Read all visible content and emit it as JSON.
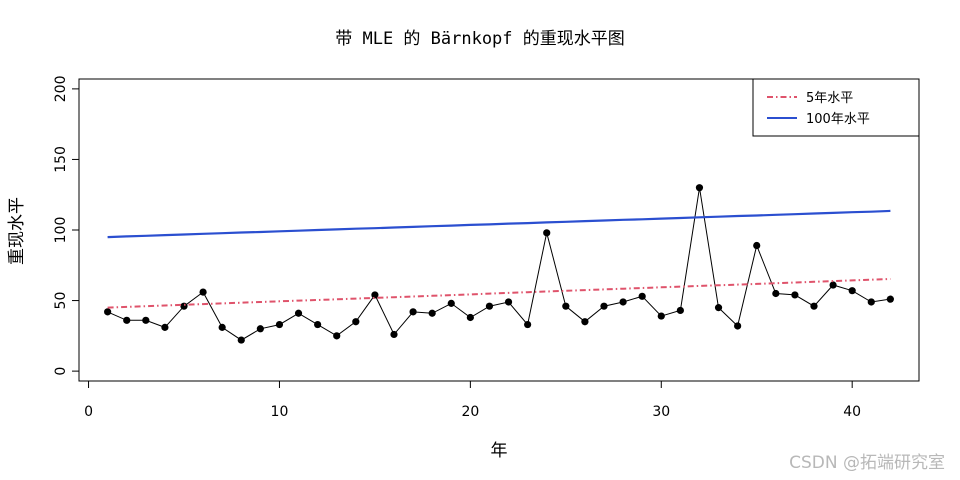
{
  "chart_data": {
    "type": "line",
    "title": "带 MLE 的 Bärnkopf 的重现水平图",
    "xlabel": "年",
    "ylabel": "重现水平",
    "xlim": [
      -0.5,
      43.5
    ],
    "ylim": [
      -7,
      207
    ],
    "xticks": [
      0,
      10,
      20,
      30,
      40
    ],
    "yticks": [
      0,
      50,
      100,
      150,
      200
    ],
    "x": [
      1,
      2,
      3,
      4,
      5,
      6,
      7,
      8,
      9,
      10,
      11,
      12,
      13,
      14,
      15,
      16,
      17,
      18,
      19,
      20,
      21,
      22,
      23,
      24,
      25,
      26,
      27,
      28,
      29,
      30,
      31,
      32,
      33,
      34,
      35,
      36,
      37,
      38,
      39,
      40,
      41,
      42
    ],
    "series": [
      {
        "name": "",
        "style": "points-solid",
        "color": "#000000",
        "values": [
          42,
          36,
          36,
          31,
          46,
          56,
          31,
          22,
          30,
          33,
          41,
          33,
          25,
          35,
          54,
          26,
          42,
          41,
          48,
          38,
          46,
          49,
          33,
          98,
          46,
          35,
          46,
          49,
          53,
          39,
          43,
          130,
          45,
          32,
          89,
          55,
          54,
          46,
          61,
          57,
          49,
          51
        ]
      },
      {
        "name": "5年水平",
        "style": "dashdot",
        "color": "#df536b",
        "values": [
          45.0,
          45.5,
          46.0,
          46.5,
          47.0,
          47.5,
          48.0,
          48.5,
          49.0,
          49.5,
          50.0,
          50.4,
          50.9,
          51.4,
          51.9,
          52.4,
          52.9,
          53.4,
          53.9,
          54.4,
          54.9,
          55.4,
          55.9,
          56.4,
          56.9,
          57.4,
          57.9,
          58.4,
          58.9,
          59.4,
          59.9,
          60.4,
          60.8,
          61.3,
          61.8,
          62.3,
          62.8,
          63.3,
          63.8,
          64.3,
          64.8,
          65.3
        ]
      },
      {
        "name": "100年水平",
        "style": "solid",
        "color": "#2b4fd0",
        "values": [
          95.0,
          95.5,
          95.9,
          96.4,
          96.8,
          97.3,
          97.7,
          98.2,
          98.6,
          99.1,
          99.5,
          100.0,
          100.4,
          100.9,
          101.3,
          101.8,
          102.2,
          102.7,
          103.1,
          103.6,
          104.0,
          104.5,
          104.9,
          105.4,
          105.8,
          106.3,
          106.7,
          107.2,
          107.6,
          108.1,
          108.5,
          109.0,
          109.4,
          109.9,
          110.3,
          110.8,
          111.2,
          111.7,
          112.1,
          112.6,
          113.0,
          113.5
        ]
      }
    ],
    "legend": {
      "position": "top-right",
      "items": [
        {
          "label": "5年水平",
          "color": "#df536b",
          "style": "dashdot"
        },
        {
          "label": "100年水平",
          "color": "#2b4fd0",
          "style": "solid"
        }
      ]
    },
    "grid": false
  },
  "watermark": "CSDN @拓端研究室"
}
